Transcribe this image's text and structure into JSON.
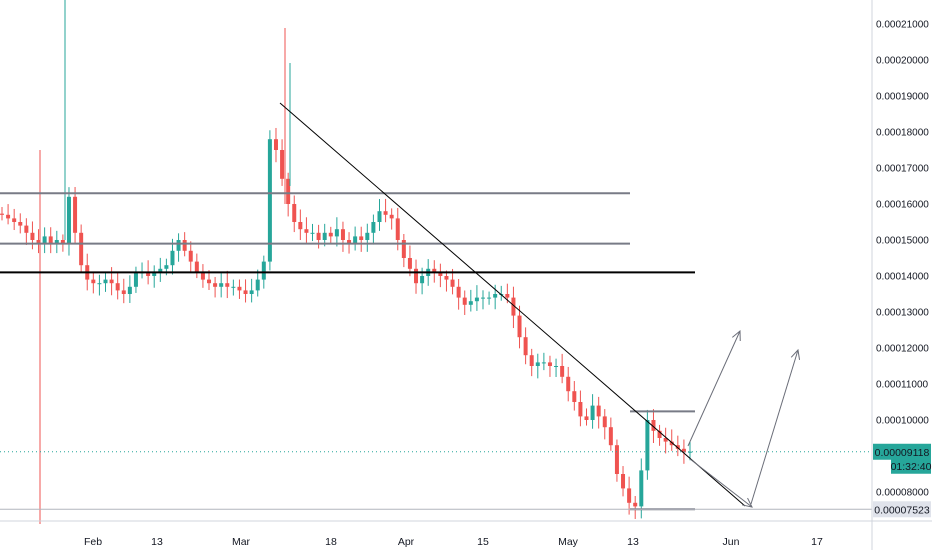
{
  "chart_data": {
    "type": "candlestick",
    "title": "",
    "xlabel": "",
    "ylabel": "",
    "y_axis_position": "right",
    "ylim": [
      7e-05,
      0.000215
    ],
    "x_ticks": [
      "Feb",
      "13",
      "Mar",
      "18",
      "Apr",
      "15",
      "May",
      "13",
      "Jun",
      "17"
    ],
    "y_ticks": [
      "0.00021000",
      "0.00020000",
      "0.00019000",
      "0.00018000",
      "0.00017000",
      "0.00016000",
      "0.00015000",
      "0.00014000",
      "0.00013000",
      "0.00012000",
      "0.00011000",
      "0.00010000",
      "0.00008000"
    ],
    "price_labels": {
      "last_price": "0.00009118",
      "countdown": "01:32:40",
      "low_marker": "0.00007523"
    },
    "colors": {
      "up": "#26a69a",
      "down": "#ef5350",
      "last_price_line": "#26a69a",
      "resistance": "#787b86",
      "support": "#000000",
      "trendline": "#000000",
      "arrow": "#6a6d78",
      "vertical_marker": "#ef5350"
    },
    "levels": {
      "upper_resistance": 0.000163,
      "middle_resistance": 0.000149,
      "support": 0.000141,
      "range_top": 0.0001024,
      "range_bottom": 7.52e-05
    },
    "price_series": [
      0.000157,
      0.000156,
      0.000155,
      0.000154,
      0.000152,
      0.00015,
      0.000149,
      0.000151,
      0.000149,
      0.00015,
      0.000149,
      0.000162,
      0.000152,
      0.000143,
      0.000139,
      0.000138,
      0.000138,
      0.000139,
      0.000138,
      0.000136,
      0.000135,
      0.000137,
      0.000141,
      0.000141,
      0.00014,
      0.000141,
      0.000142,
      0.000143,
      0.000147,
      0.00015,
      0.000147,
      0.000144,
      0.000141,
      0.000139,
      0.000138,
      0.000137,
      0.000138,
      0.000137,
      0.000137,
      0.000136,
      0.000135,
      0.000136,
      0.000139,
      0.000144,
      0.000178,
      0.000175,
      0.000167,
      0.00016,
      0.000155,
      0.000153,
      0.000152,
      0.000152,
      0.00015,
      0.000152,
      0.000151,
      0.000153,
      0.00015,
      0.000149,
      0.000151,
      0.00015,
      0.000152,
      0.000155,
      0.000158,
      0.000157,
      0.000156,
      0.00015,
      0.000145,
      0.000142,
      0.000138,
      0.00014,
      0.000142,
      0.000141,
      0.00014,
      0.000139,
      0.000137,
      0.000134,
      0.000132,
      0.000133,
      0.000134,
      0.000134,
      0.000134,
      0.000135,
      0.000135,
      0.000134,
      0.000129,
      0.000123,
      0.000118,
      0.000115,
      0.000116,
      0.000116,
      0.000115,
      0.000115,
      0.000112,
      0.000108,
      0.000105,
      0.000101,
      0.0001,
      0.000104,
      0.000101,
      9.8e-05,
      9.3e-05,
      8.5e-05,
      8.1e-05,
      7.7e-05,
      7.6e-05,
      8.6e-05,
      0.0001,
      9.7e-05,
      9.5e-05,
      9.4e-05,
      9.3e-05,
      9.2e-05,
      9.1e-05,
      9.12e-05
    ]
  }
}
